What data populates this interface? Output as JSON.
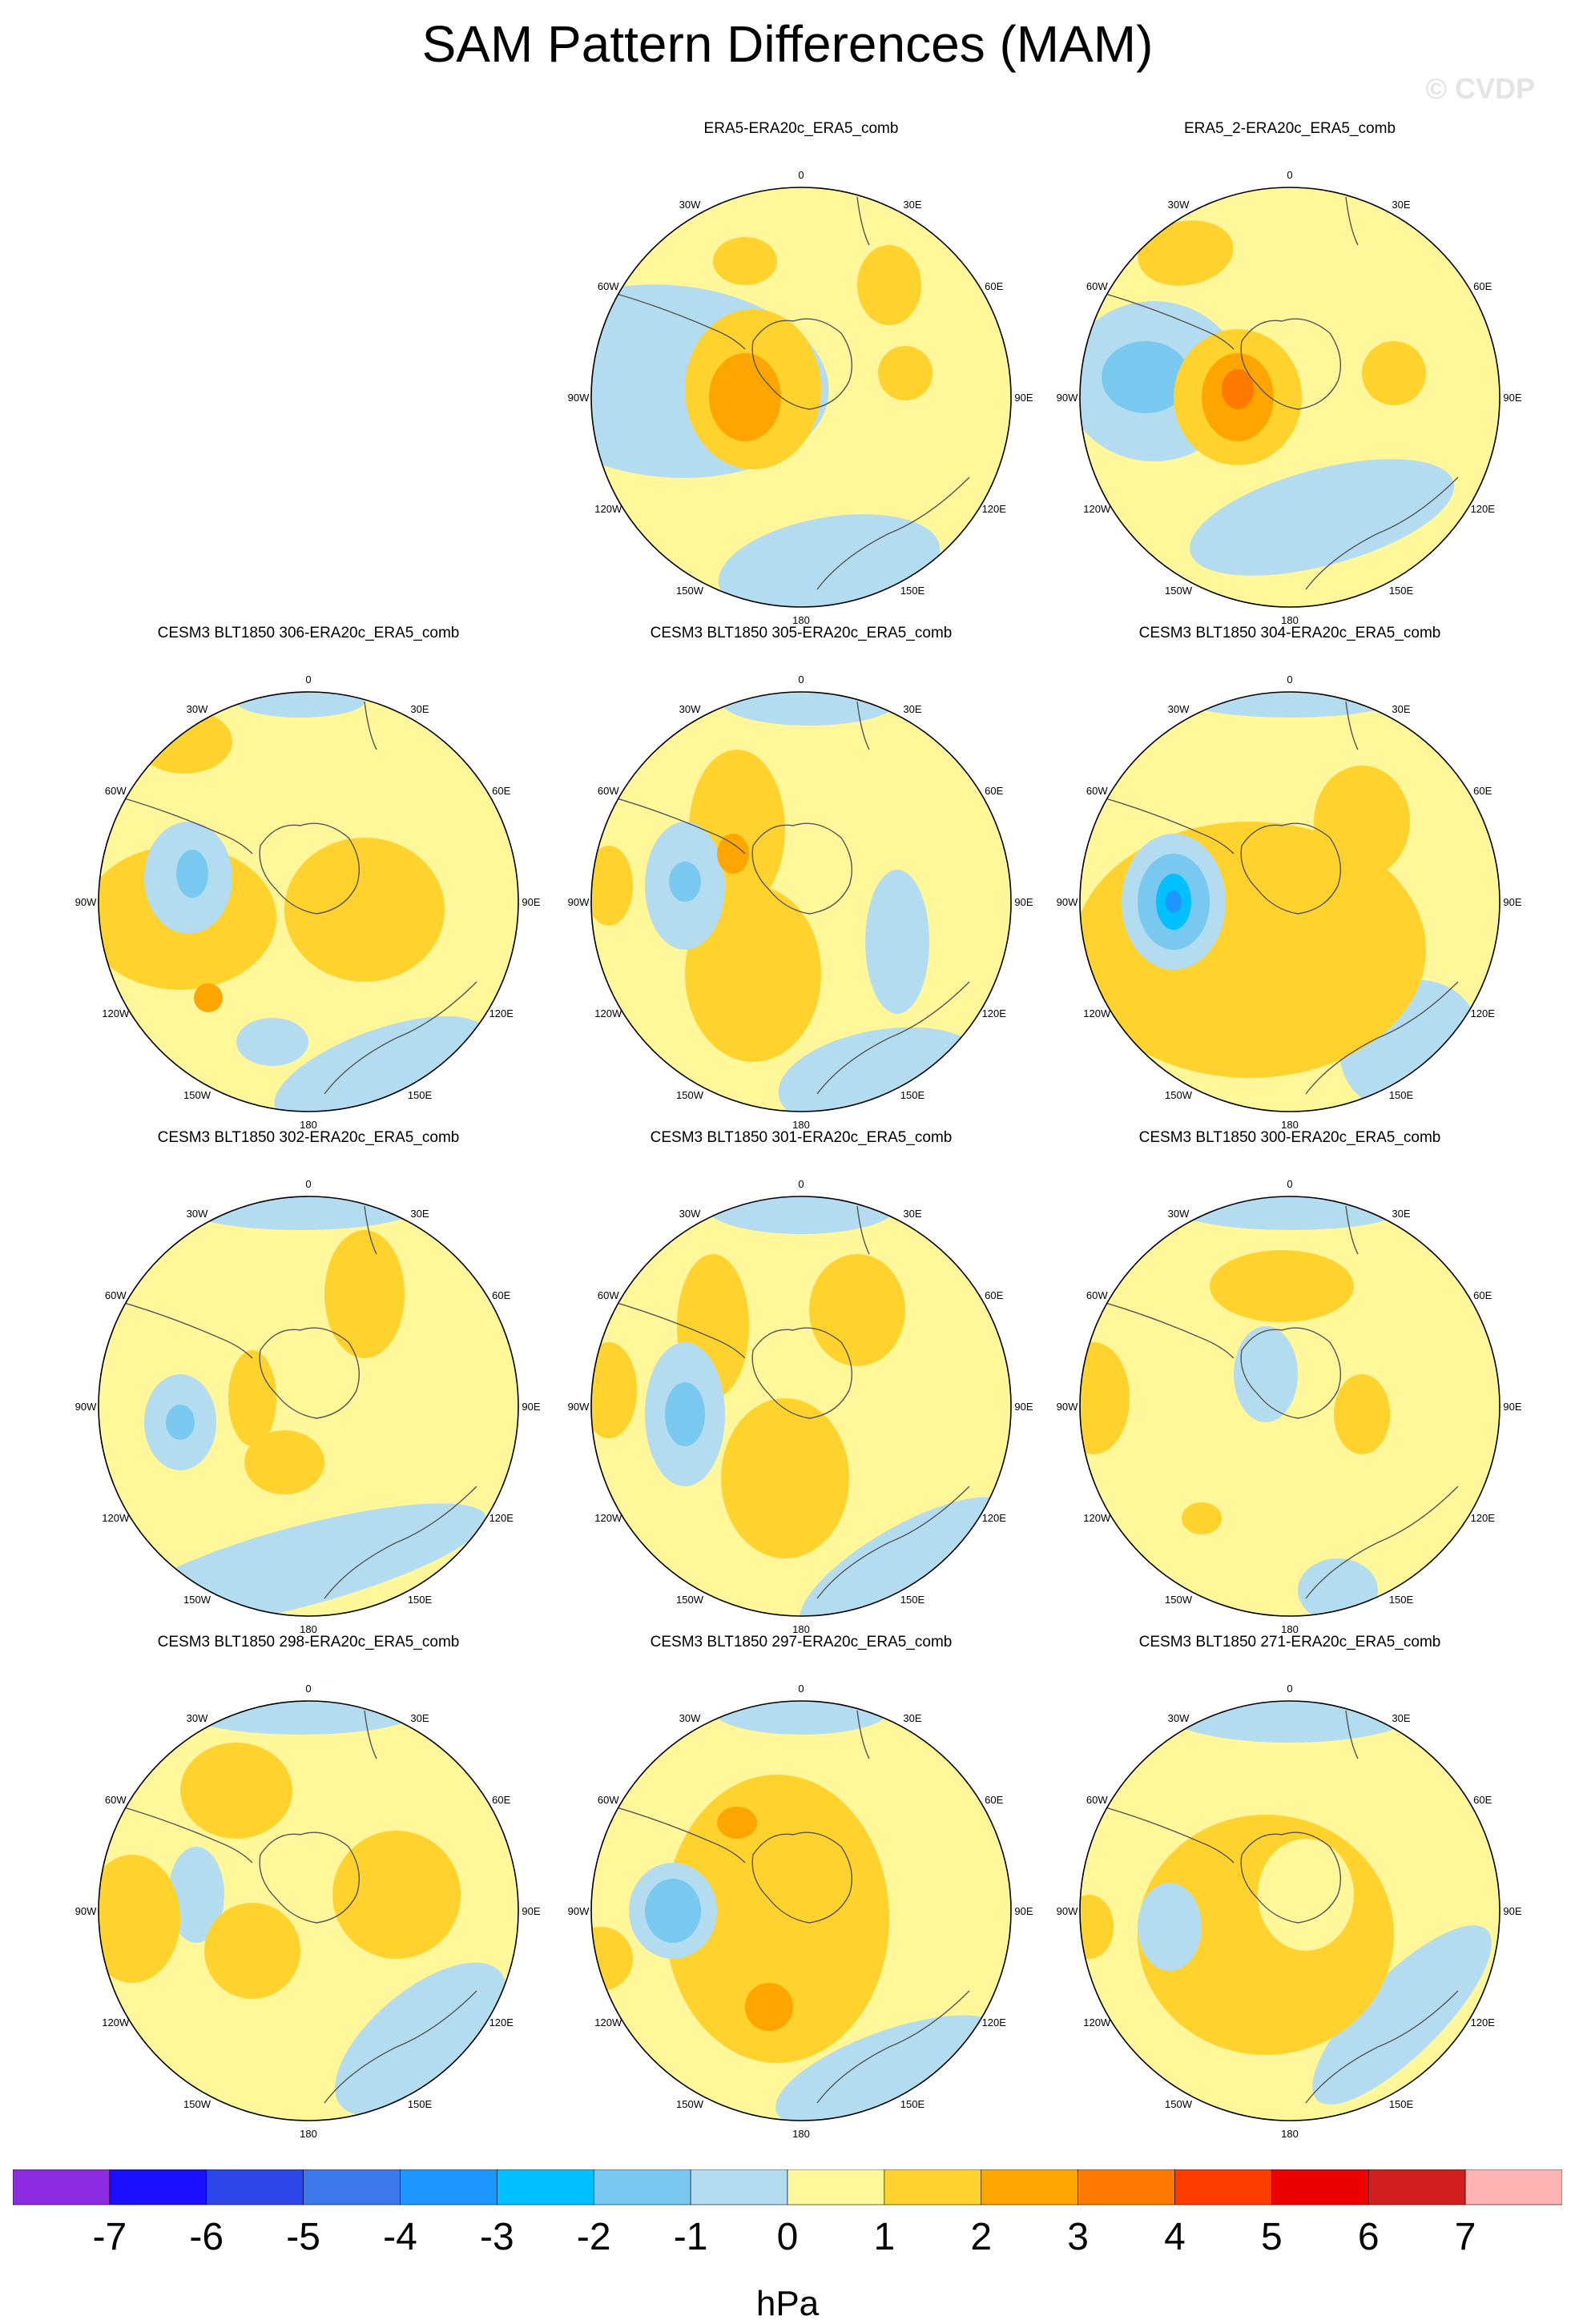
{
  "title": "SAM Pattern Differences (MAM)",
  "watermark": "© CVDP",
  "colors": {
    "c_m7": "#8b2be2",
    "c_m6": "#1a10ff",
    "c_m5": "#2a46e8",
    "c_m4": "#3a78ec",
    "c_m3": "#1e96ff",
    "c_m2": "#00c0ff",
    "c_m1": "#78c8f0",
    "c_0": "#b4dcf0",
    "c_p0": "#fff799",
    "c_p1": "#ffd22e",
    "c_p2": "#ffa500",
    "c_p3": "#ff7a00",
    "c_p4": "#ff3c00",
    "c_p5": "#ee0000",
    "c_p6": "#d21e1e",
    "c_p7": "#ffb4b4",
    "coast": "#555555"
  },
  "lon_labels": {
    "l0": "0",
    "l30e": "30E",
    "l60e": "60E",
    "l90e": "90E",
    "l120e": "120E",
    "l150e": "150E",
    "l180": "180",
    "l150w": "150W",
    "l120w": "120W",
    "l90w": "90W",
    "l60w": "60W",
    "l30w": "30W"
  },
  "panels": [
    {
      "title": "ERA5-ERA20c_ERA5_comb",
      "style": 0
    },
    {
      "title": "ERA5_2-ERA20c_ERA5_comb",
      "style": 1
    },
    {
      "title": "CESM3 BLT1850 306-ERA20c_ERA5_comb",
      "style": 2
    },
    {
      "title": "CESM3 BLT1850 305-ERA20c_ERA5_comb",
      "style": 3
    },
    {
      "title": "CESM3 BLT1850 304-ERA20c_ERA5_comb",
      "style": 4
    },
    {
      "title": "CESM3 BLT1850 302-ERA20c_ERA5_comb",
      "style": 5
    },
    {
      "title": "CESM3 BLT1850 301-ERA20c_ERA5_comb",
      "style": 6
    },
    {
      "title": "CESM3 BLT1850 300-ERA20c_ERA5_comb",
      "style": 7
    },
    {
      "title": "CESM3 BLT1850 298-ERA20c_ERA5_comb",
      "style": 8
    },
    {
      "title": "CESM3 BLT1850 297-ERA20c_ERA5_comb",
      "style": 9
    },
    {
      "title": "CESM3 BLT1850 271-ERA20c_ERA5_comb",
      "style": 10
    }
  ],
  "colorbar": {
    "labels": [
      "-7",
      "-6",
      "-5",
      "-4",
      "-3",
      "-2",
      "-1",
      "0",
      "1",
      "2",
      "3",
      "4",
      "5",
      "6",
      "7"
    ],
    "colors": [
      "#8b2be2",
      "#1a10ff",
      "#2a46e8",
      "#3a78ec",
      "#1e96ff",
      "#00c0ff",
      "#78c8f0",
      "#b4dcf0",
      "#fff799",
      "#ffd22e",
      "#ffa500",
      "#ff7a00",
      "#ff3c00",
      "#ee0000",
      "#d21e1e",
      "#ffb4b4"
    ],
    "units": "hPa"
  }
}
